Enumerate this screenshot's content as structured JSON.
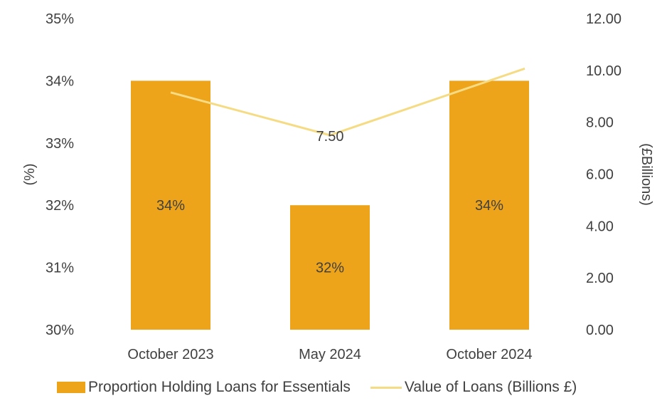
{
  "chart_data": {
    "type": "bar",
    "categories": [
      "October 2023",
      "May 2024",
      "October 2024"
    ],
    "series": [
      {
        "name": "Proportion Holding Loans for Essentials",
        "type": "bar",
        "axis": "left",
        "values": [
          34,
          32,
          34
        ],
        "value_labels": [
          "34%",
          "32%",
          "34%"
        ],
        "color": "#EDA31A"
      },
      {
        "name": "Value of Loans (Billions £)",
        "type": "line",
        "axis": "right",
        "values": [
          9.15,
          7.5,
          9.6
        ],
        "value_labels": [
          "",
          "7.50",
          ""
        ],
        "color": "#F5DC84"
      }
    ],
    "y_left": {
      "label": "(%)",
      "ylim": [
        30,
        35
      ],
      "ticks": [
        30,
        31,
        32,
        33,
        34,
        35
      ],
      "tick_labels": [
        "30%",
        "31%",
        "32%",
        "33%",
        "34%",
        "35%"
      ]
    },
    "y_right": {
      "label": "(£Billions)",
      "ylim": [
        0,
        12
      ],
      "ticks": [
        0,
        2,
        4,
        6,
        8,
        10,
        12
      ],
      "tick_labels": [
        "0.00",
        "2.00",
        "4.00",
        "6.00",
        "8.00",
        "10.00",
        "12.00"
      ]
    },
    "grid": false,
    "legend_position": "bottom"
  }
}
